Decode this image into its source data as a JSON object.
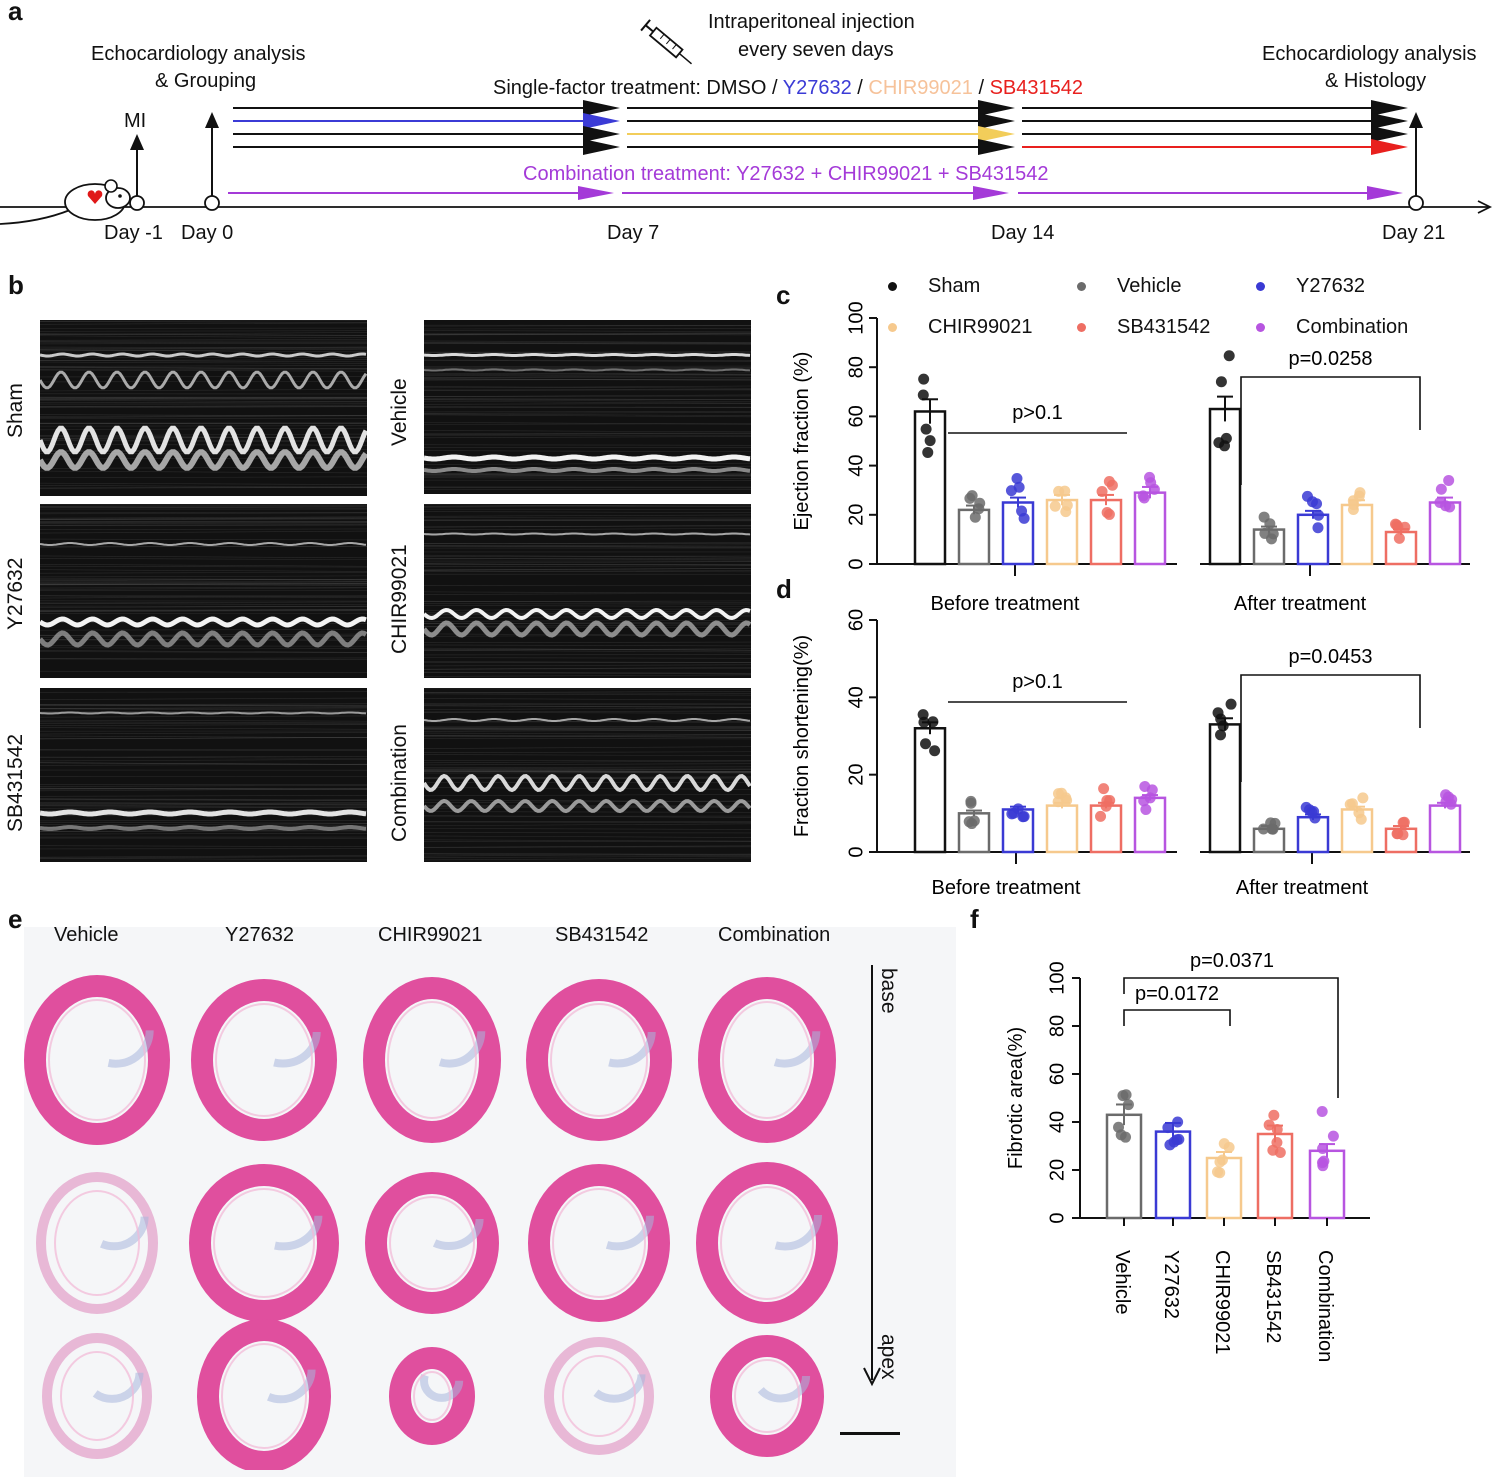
{
  "panels": {
    "a": "a",
    "b": "b",
    "c": "c",
    "d": "d",
    "e": "e",
    "f": "f"
  },
  "timeline": {
    "injection_line1": "Intraperitoneal injection",
    "injection_line2": "every seven days",
    "echo_left_line1": "Echocardiology analysis",
    "echo_left_line2": "& Grouping",
    "echo_right_line1": "Echocardiology analysis",
    "echo_right_line2": "& Histology",
    "mi": "MI",
    "single_prefix": "Single-factor treatment: DMSO / ",
    "single_y": "Y27632",
    "single_sep": " / ",
    "single_chir": "CHIR99021",
    "single_sb": "SB431542",
    "combination": "Combination treatment: Y27632 + CHIR99021 + SB431542",
    "days": [
      "Day -1",
      "Day 0",
      "Day 7",
      "Day 14",
      "Day 21"
    ],
    "colors": {
      "black": "#111111",
      "blue": "#3b3bd6",
      "yellow": "#f2cd5a",
      "red": "#e8201e",
      "purple": "#a43ad8"
    }
  },
  "echo": {
    "labels": [
      "Sham",
      "Vehicle",
      "Y27632",
      "CHIR99021",
      "SB431542",
      "Combination"
    ]
  },
  "legend": [
    {
      "name": "Sham",
      "color": "#111111"
    },
    {
      "name": "Vehicle",
      "color": "#6b6b6b"
    },
    {
      "name": "Y27632",
      "color": "#3a3ad4"
    },
    {
      "name": "CHIR99021",
      "color": "#f6c98d"
    },
    {
      "name": "SB431542",
      "color": "#ee6e63"
    },
    {
      "name": "Combination",
      "color": "#b755e0"
    }
  ],
  "chart_data": [
    {
      "id": "c",
      "type": "bar",
      "ylabel": "Ejection fraction (%)",
      "ylim": [
        0,
        100
      ],
      "yticks": [
        0,
        20,
        40,
        60,
        80,
        100
      ],
      "groups": [
        "Before treatment",
        "After treatment"
      ],
      "series": [
        {
          "name": "Sham",
          "values": [
            62,
            63
          ]
        },
        {
          "name": "Vehicle",
          "values": [
            22,
            14
          ]
        },
        {
          "name": "Y27632",
          "values": [
            25,
            20
          ]
        },
        {
          "name": "CHIR99021",
          "values": [
            26,
            24
          ]
        },
        {
          "name": "SB431542",
          "values": [
            26,
            13
          ]
        },
        {
          "name": "Combination",
          "values": [
            29,
            25
          ]
        }
      ],
      "annotations": [
        {
          "text": "p>0.1",
          "group": "Before treatment"
        },
        {
          "text": "p=0.0258",
          "group": "After treatment"
        }
      ]
    },
    {
      "id": "d",
      "type": "bar",
      "ylabel": "Fraction shortening(%)",
      "ylim": [
        0,
        60
      ],
      "yticks": [
        0,
        20,
        40,
        60
      ],
      "groups": [
        "Before treatment",
        "After treatment"
      ],
      "series": [
        {
          "name": "Sham",
          "values": [
            32,
            33
          ]
        },
        {
          "name": "Vehicle",
          "values": [
            10,
            6
          ]
        },
        {
          "name": "Y27632",
          "values": [
            11,
            9
          ]
        },
        {
          "name": "CHIR99021",
          "values": [
            12,
            11
          ]
        },
        {
          "name": "SB431542",
          "values": [
            12,
            6
          ]
        },
        {
          "name": "Combination",
          "values": [
            14,
            12
          ]
        }
      ],
      "annotations": [
        {
          "text": "p>0.1",
          "group": "Before treatment"
        },
        {
          "text": "p=0.0453",
          "group": "After treatment"
        }
      ]
    },
    {
      "id": "f",
      "type": "bar",
      "ylabel": "Fibrotic area(%)",
      "ylim": [
        0,
        100
      ],
      "yticks": [
        0,
        20,
        40,
        60,
        80,
        100
      ],
      "categories": [
        "Vehicle",
        "Y27632",
        "CHIR99021",
        "SB431542",
        "Combination"
      ],
      "values": [
        43,
        36,
        25,
        35,
        28
      ],
      "annotations": [
        {
          "text": "p=0.0172",
          "between": [
            "Vehicle",
            "CHIR99021"
          ]
        },
        {
          "text": "p=0.0371",
          "between": [
            "Vehicle",
            "Combination"
          ]
        }
      ]
    }
  ],
  "histology": {
    "columns": [
      "Vehicle",
      "Y27632",
      "CHIR99021",
      "SB431542",
      "Combination"
    ],
    "base": "base",
    "apex": "apex"
  }
}
